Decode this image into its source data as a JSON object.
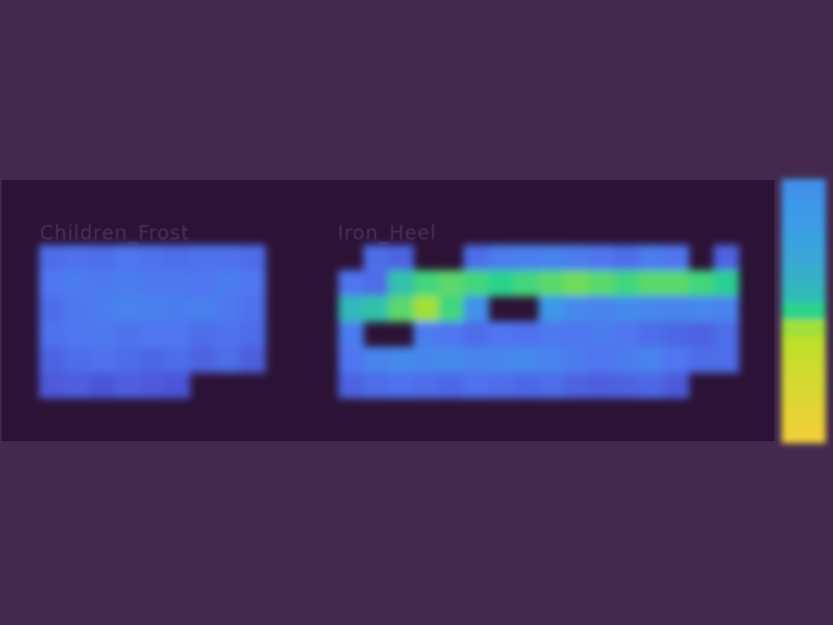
{
  "chart_data": [
    {
      "type": "heatmap",
      "title": "Children_Frost",
      "rows": 6,
      "cols": 9,
      "values": [
        [
          0.2,
          0.21,
          0.2,
          0.22,
          0.21,
          0.2,
          0.21,
          0.21,
          0.2
        ],
        [
          0.22,
          0.24,
          0.23,
          0.24,
          0.23,
          0.23,
          0.22,
          0.24,
          0.22
        ],
        [
          0.2,
          0.23,
          0.24,
          0.26,
          0.25,
          0.24,
          0.25,
          0.23,
          0.21
        ],
        [
          0.21,
          0.22,
          0.23,
          0.21,
          0.22,
          0.22,
          0.2,
          0.21,
          0.2
        ],
        [
          0.18,
          0.2,
          0.21,
          0.2,
          0.19,
          0.2,
          0.18,
          0.2,
          0.17
        ],
        [
          0.16,
          0.17,
          0.15,
          0.17,
          0.16,
          0.15,
          null,
          null,
          null
        ]
      ]
    },
    {
      "type": "heatmap",
      "title": "Iron_Heel",
      "rows": 6,
      "cols": 16,
      "values": [
        [
          null,
          0.2,
          0.18,
          null,
          null,
          0.2,
          0.24,
          0.25,
          0.26,
          0.24,
          0.22,
          0.2,
          0.24,
          0.22,
          null,
          0.18
        ],
        [
          0.22,
          0.2,
          0.42,
          0.48,
          0.5,
          0.48,
          0.46,
          0.48,
          0.5,
          0.52,
          0.5,
          0.48,
          0.5,
          0.5,
          0.48,
          0.45
        ],
        [
          0.4,
          0.42,
          0.5,
          0.56,
          0.48,
          0.3,
          null,
          null,
          0.32,
          0.28,
          0.26,
          0.28,
          0.27,
          0.26,
          0.27,
          0.26
        ],
        [
          0.24,
          null,
          null,
          0.24,
          0.22,
          0.2,
          0.22,
          0.21,
          0.23,
          0.22,
          0.24,
          0.22,
          0.2,
          0.19,
          0.18,
          0.2
        ],
        [
          0.22,
          0.26,
          0.28,
          0.27,
          0.28,
          0.26,
          0.27,
          0.28,
          0.26,
          0.24,
          0.22,
          0.24,
          0.26,
          0.22,
          0.2,
          0.2
        ],
        [
          0.18,
          0.2,
          0.21,
          0.2,
          0.19,
          0.21,
          0.2,
          0.19,
          0.2,
          0.18,
          0.17,
          0.18,
          0.19,
          0.16,
          null,
          null
        ]
      ]
    }
  ],
  "colorbar": {
    "values": [
      0.3,
      0.32,
      0.33,
      0.35,
      0.36,
      0.38,
      0.4,
      0.46,
      0.56,
      0.6,
      0.62,
      0.64,
      0.66,
      0.68,
      0.7
    ]
  },
  "colors": {
    "background": "#44294f",
    "panel": "#2c1235",
    "label": "#4a3356",
    "colormap": [
      "#4a3ec6",
      "#4f76f0",
      "#3a9ee6",
      "#2bd38c",
      "#b7e228",
      "#f0d038"
    ]
  }
}
